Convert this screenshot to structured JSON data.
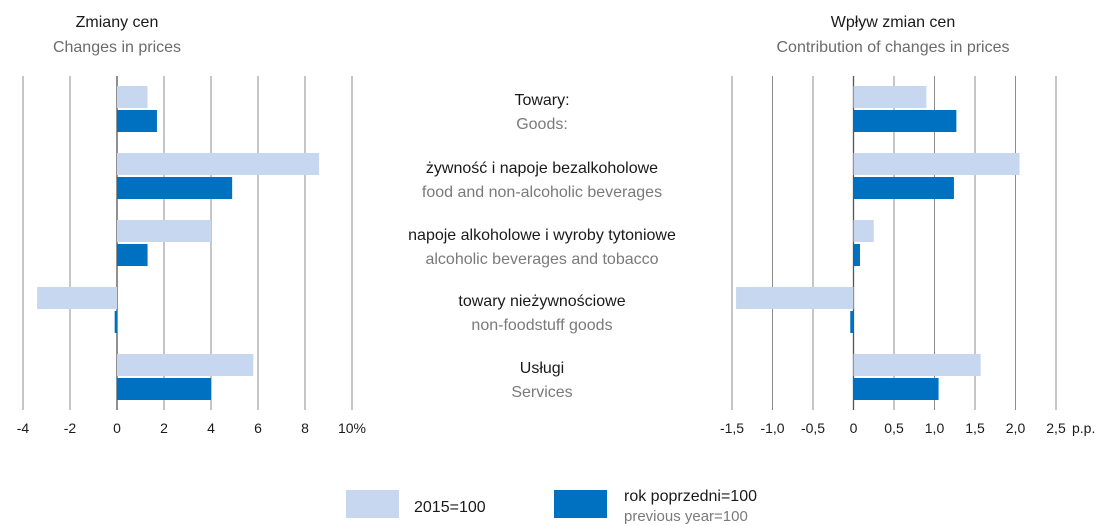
{
  "chart_data": [
    {
      "type": "bar",
      "orientation": "horizontal",
      "title": "Zmiany cen",
      "subtitle": "Changes in prices",
      "categories": [
        "Towary:",
        "żywność i napoje bezalkoholowe",
        "napoje alkoholowe i wyroby tytoniowe",
        "towary nieżywnościowe",
        "Usługi"
      ],
      "series": [
        {
          "name": "2015=100",
          "color": "#c6d7ef",
          "values": [
            1.3,
            8.6,
            4.0,
            -3.4,
            5.8
          ]
        },
        {
          "name": "rok poprzedni=100",
          "color": "#0070c0",
          "values": [
            1.7,
            4.9,
            1.3,
            -0.1,
            4.0
          ]
        }
      ],
      "xlim": [
        -4,
        10
      ],
      "tick_values": [
        -4,
        -2,
        0,
        2,
        4,
        6,
        8,
        10
      ],
      "tick_labels": [
        "-4",
        "-2",
        "0",
        "2",
        "4",
        "6",
        "8",
        "10%"
      ],
      "grid": true
    },
    {
      "type": "bar",
      "orientation": "horizontal",
      "title": "Wpływ zmian cen",
      "subtitle": "Contribution of changes in prices",
      "categories": [
        "Towary:",
        "żywność i napoje bezalkoholowe",
        "napoje alkoholowe i wyroby tytoniowe",
        "towary nieżywnościowe",
        "Usługi"
      ],
      "series": [
        {
          "name": "2015=100",
          "color": "#c6d7ef",
          "values": [
            0.9,
            2.05,
            0.25,
            -1.45,
            1.57
          ]
        },
        {
          "name": "rok poprzedni=100",
          "color": "#0070c0",
          "values": [
            1.27,
            1.24,
            0.08,
            -0.04,
            1.05
          ]
        }
      ],
      "xlim": [
        -1.5,
        2.5
      ],
      "tick_values": [
        -1.5,
        -1.0,
        -0.5,
        0,
        0.5,
        1.0,
        1.5,
        2.0,
        2.5
      ],
      "tick_labels": [
        "-1,5",
        "-1,0",
        "-0,5",
        "0",
        "0,5",
        "1,0",
        "1,5",
        "2,0",
        "2,5"
      ],
      "unit_label": "p.p.",
      "grid": true
    }
  ],
  "categories_en": [
    "Goods:",
    "food and non-alcoholic beverages",
    "alcoholic beverages and tobacco",
    "non-foodstuff goods",
    "Services"
  ],
  "legend": [
    {
      "label": "2015=100",
      "sub": "",
      "color": "#c6d7ef"
    },
    {
      "label": "rok poprzedni=100",
      "sub": "previous year=100",
      "color": "#0070c0"
    }
  ],
  "colors": {
    "gridline": "#8c8c8c",
    "zero_line": "#555555"
  }
}
